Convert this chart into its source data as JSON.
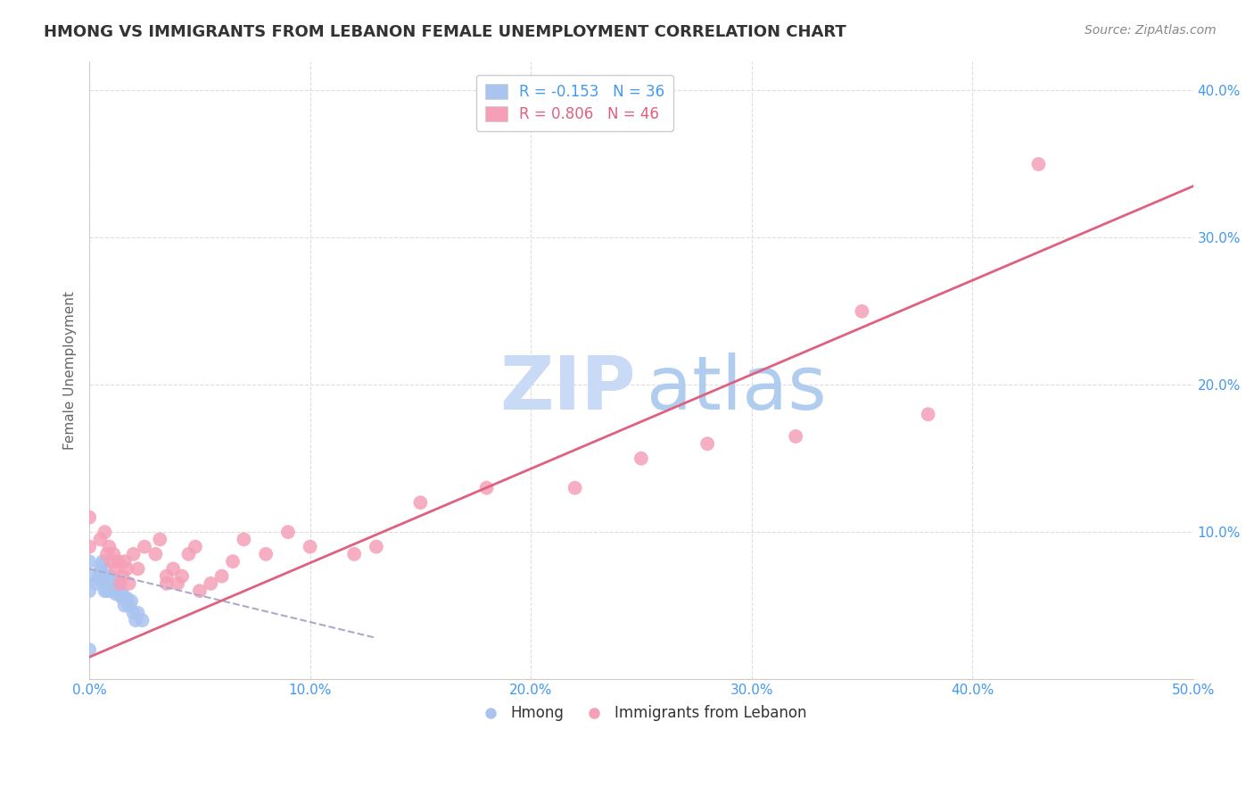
{
  "title": "HMONG VS IMMIGRANTS FROM LEBANON FEMALE UNEMPLOYMENT CORRELATION CHART",
  "source": "Source: ZipAtlas.com",
  "ylabel": "Female Unemployment",
  "xlim": [
    0.0,
    0.5
  ],
  "ylim": [
    0.0,
    0.42
  ],
  "xticks": [
    0.0,
    0.1,
    0.2,
    0.3,
    0.4,
    0.5
  ],
  "yticks": [
    0.0,
    0.1,
    0.2,
    0.3,
    0.4
  ],
  "xtick_labels": [
    "0.0%",
    "10.0%",
    "20.0%",
    "30.0%",
    "40.0%",
    "50.0%"
  ],
  "ytick_labels": [
    "",
    "10.0%",
    "20.0%",
    "30.0%",
    "40.0%"
  ],
  "background_color": "#ffffff",
  "grid_color": "#dddddd",
  "hmong_color": "#aac4f0",
  "lebanon_color": "#f5a0b8",
  "hmong_R": -0.153,
  "hmong_N": 36,
  "lebanon_R": 0.806,
  "lebanon_N": 46,
  "title_color": "#333333",
  "axis_tick_color": "#4499ee",
  "watermark_color": "#c8daf5",
  "watermark_color2": "#b0ccee",
  "legend_label_hmong": "Hmong",
  "legend_label_lebanon": "Immigrants from Lebanon",
  "hmong_scatter_x": [
    0.0,
    0.0,
    0.0,
    0.003,
    0.004,
    0.005,
    0.005,
    0.005,
    0.006,
    0.006,
    0.007,
    0.007,
    0.007,
    0.008,
    0.008,
    0.008,
    0.009,
    0.009,
    0.01,
    0.01,
    0.011,
    0.012,
    0.012,
    0.013,
    0.014,
    0.015,
    0.015,
    0.016,
    0.017,
    0.018,
    0.019,
    0.02,
    0.021,
    0.022,
    0.024,
    0.0
  ],
  "hmong_scatter_y": [
    0.06,
    0.07,
    0.08,
    0.065,
    0.068,
    0.07,
    0.072,
    0.075,
    0.078,
    0.08,
    0.06,
    0.065,
    0.07,
    0.06,
    0.065,
    0.068,
    0.065,
    0.07,
    0.06,
    0.063,
    0.068,
    0.058,
    0.062,
    0.06,
    0.057,
    0.055,
    0.058,
    0.05,
    0.055,
    0.05,
    0.053,
    0.045,
    0.04,
    0.045,
    0.04,
    0.02
  ],
  "lebanon_scatter_x": [
    0.0,
    0.0,
    0.005,
    0.007,
    0.008,
    0.009,
    0.01,
    0.011,
    0.012,
    0.013,
    0.014,
    0.015,
    0.016,
    0.017,
    0.018,
    0.02,
    0.022,
    0.025,
    0.03,
    0.032,
    0.035,
    0.035,
    0.038,
    0.04,
    0.042,
    0.045,
    0.048,
    0.05,
    0.055,
    0.06,
    0.065,
    0.07,
    0.08,
    0.09,
    0.1,
    0.12,
    0.13,
    0.15,
    0.18,
    0.22,
    0.25,
    0.28,
    0.32,
    0.38,
    0.43,
    0.35
  ],
  "lebanon_scatter_y": [
    0.11,
    0.09,
    0.095,
    0.1,
    0.085,
    0.09,
    0.08,
    0.085,
    0.075,
    0.08,
    0.065,
    0.07,
    0.08,
    0.075,
    0.065,
    0.085,
    0.075,
    0.09,
    0.085,
    0.095,
    0.065,
    0.07,
    0.075,
    0.065,
    0.07,
    0.085,
    0.09,
    0.06,
    0.065,
    0.07,
    0.08,
    0.095,
    0.085,
    0.1,
    0.09,
    0.085,
    0.09,
    0.12,
    0.13,
    0.13,
    0.15,
    0.16,
    0.165,
    0.18,
    0.35,
    0.25
  ],
  "hmong_trend_x": [
    0.0,
    0.13
  ],
  "hmong_trend_y": [
    0.075,
    0.028
  ],
  "lebanon_trend_x": [
    0.0,
    0.5
  ],
  "lebanon_trend_y": [
    0.015,
    0.335
  ]
}
